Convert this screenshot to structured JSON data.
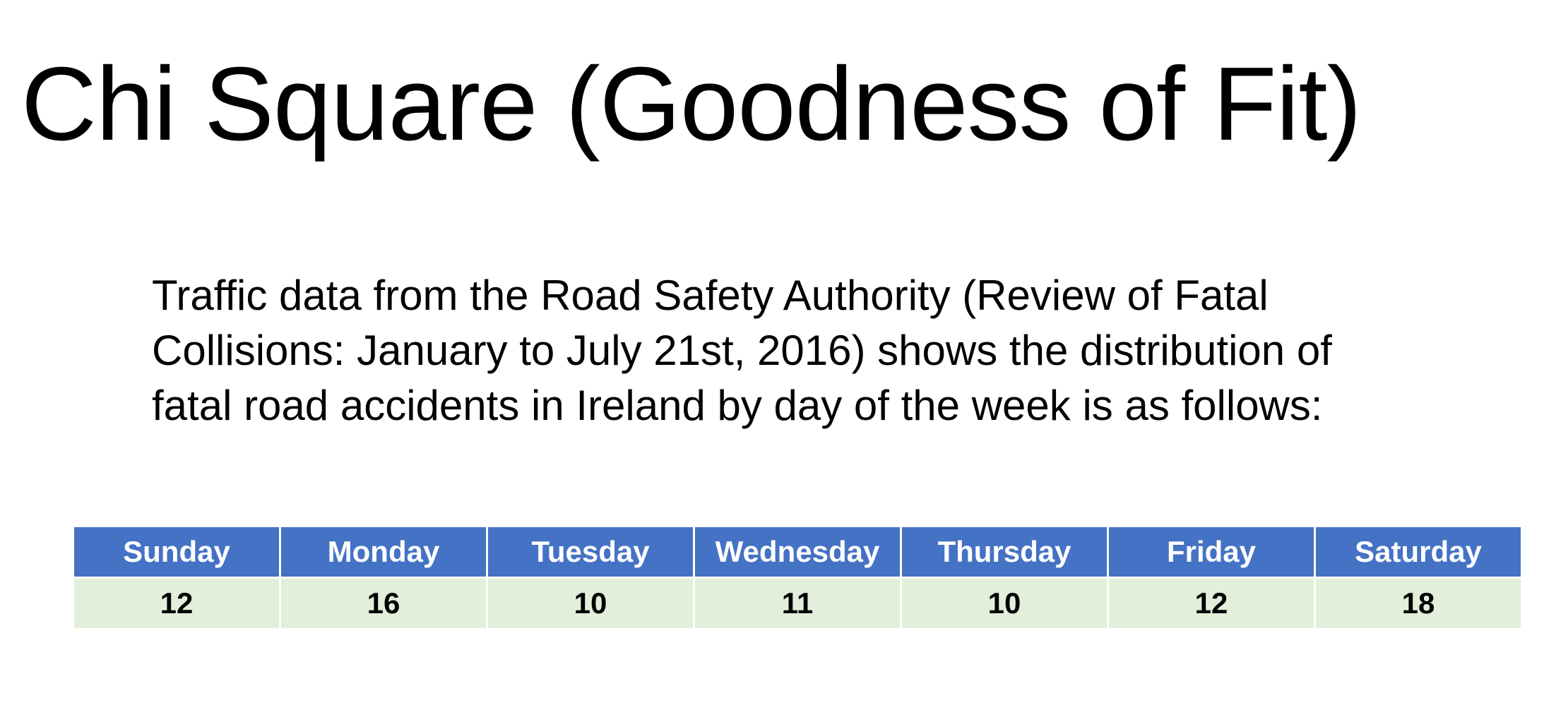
{
  "title": "Chi Square (Goodness of Fit)",
  "body": {
    "lines": [
      "Traffic data from the Road Safety Authority (Review of Fatal",
      "Collisions: January to July 21st, 2016) shows the distribution of",
      "fatal road accidents in Ireland by day of the week is as follows:"
    ]
  },
  "table": {
    "headers": [
      "Sunday",
      "Monday",
      "Tuesday",
      "Wednesday",
      "Thursday",
      "Friday",
      "Saturday"
    ],
    "values": [
      "12",
      "16",
      "10",
      "11",
      "10",
      "12",
      "18"
    ],
    "header_color": "#4472c4",
    "cell_color": "#e2efda"
  }
}
